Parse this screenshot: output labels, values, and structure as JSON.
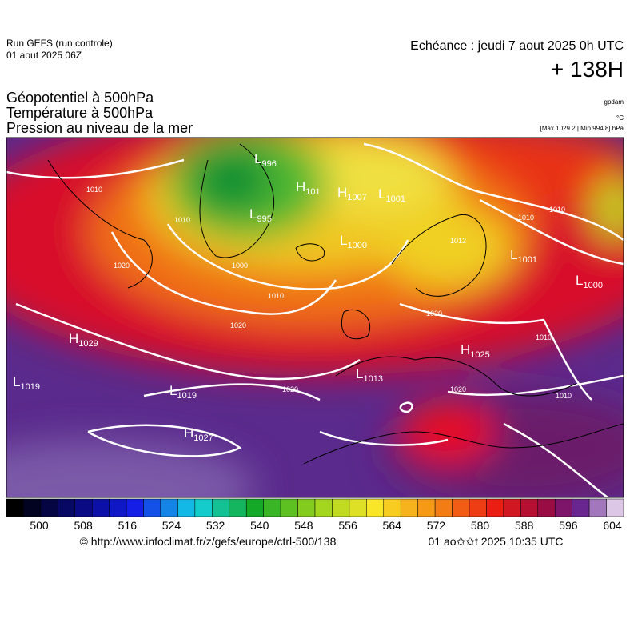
{
  "header": {
    "run": "Run GEFS (run controle)",
    "run_date": "01 aout 2025 06Z",
    "echeance": "Echéance : jeudi 7 aout 2025 0h UTC",
    "lead": "+ 138H"
  },
  "titles": [
    "Géopotentiel à 500hPa",
    "Température à 500hPa",
    "Pression au niveau de la mer"
  ],
  "units": [
    "gpdam",
    "°C",
    "[Max 1029.2 | Min 994.8] hPa"
  ],
  "centers": [
    {
      "letter": "L",
      "value": 996
    },
    {
      "letter": "H",
      "value": 101
    },
    {
      "letter": "H",
      "value": 1007
    },
    {
      "letter": "L",
      "value": 1001
    },
    {
      "letter": "L",
      "value": 995
    },
    {
      "letter": "L",
      "value": 1000
    },
    {
      "letter": "L",
      "value": 1001
    },
    {
      "letter": "L",
      "value": 1000
    },
    {
      "letter": "H",
      "value": 1029
    },
    {
      "letter": "H",
      "value": 1025
    },
    {
      "letter": "L",
      "value": 1013
    },
    {
      "letter": "L",
      "value": 1019
    },
    {
      "letter": "L",
      "value": 1019
    },
    {
      "letter": "H",
      "value": 1027
    }
  ],
  "isobar_labels": [
    1010,
    1010,
    1020,
    1000,
    1010,
    1020,
    1020,
    1012,
    1010,
    1010,
    1020,
    1010,
    1020,
    1010
  ],
  "colorbar_ticks": [
    500,
    508,
    516,
    524,
    532,
    540,
    548,
    556,
    564,
    572,
    580,
    588,
    596,
    604
  ],
  "footer": {
    "url": "© http://www.infoclimat.fr/z/gefs/europe/ctrl-500/138",
    "time": "01 ao✩✩t 2025 10:35 UTC"
  }
}
